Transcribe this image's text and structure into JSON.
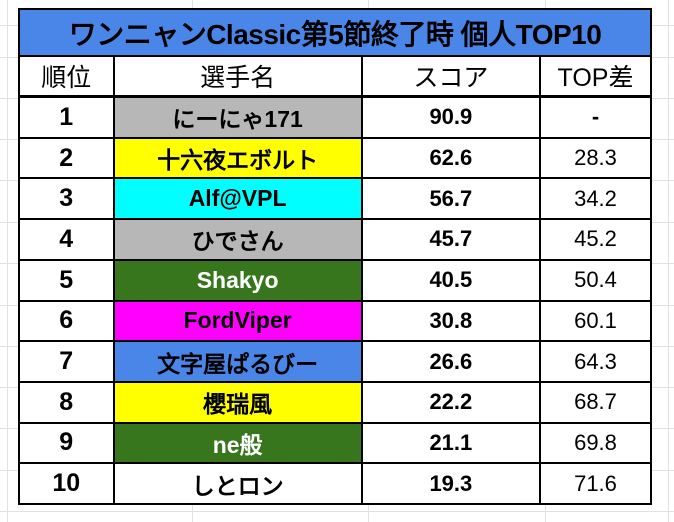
{
  "title": "ワンニャンClassic第5節終了時 個人TOP10",
  "columns": {
    "rank": "順位",
    "name": "選手名",
    "score": "スコア",
    "diff": "TOP差"
  },
  "rows": [
    {
      "rank": "1",
      "name": "にーにゃ171",
      "score": "90.9",
      "diff": "-",
      "name_bg": "#B7B7B7",
      "name_fg": "#000000"
    },
    {
      "rank": "2",
      "name": "十六夜エボルト",
      "score": "62.6",
      "diff": "28.3",
      "name_bg": "#FFFF00",
      "name_fg": "#000000"
    },
    {
      "rank": "3",
      "name": "Alf@VPL",
      "score": "56.7",
      "diff": "34.2",
      "name_bg": "#00FFFF",
      "name_fg": "#000000"
    },
    {
      "rank": "4",
      "name": "ひでさん",
      "score": "45.7",
      "diff": "45.2",
      "name_bg": "#B7B7B7",
      "name_fg": "#000000"
    },
    {
      "rank": "5",
      "name": "Shakyo",
      "score": "40.5",
      "diff": "50.4",
      "name_bg": "#38761D",
      "name_fg": "#FFFFFF"
    },
    {
      "rank": "6",
      "name": "FordViper",
      "score": "30.8",
      "diff": "60.1",
      "name_bg": "#FF00FF",
      "name_fg": "#000000"
    },
    {
      "rank": "7",
      "name": "文字屋ぱるびー",
      "score": "26.6",
      "diff": "64.3",
      "name_bg": "#4A86E8",
      "name_fg": "#000000"
    },
    {
      "rank": "8",
      "name": "櫻瑞風",
      "score": "22.2",
      "diff": "68.7",
      "name_bg": "#FFFF00",
      "name_fg": "#000000"
    },
    {
      "rank": "9",
      "name": "ne般",
      "score": "21.1",
      "diff": "69.8",
      "name_bg": "#38761D",
      "name_fg": "#FFFFFF"
    },
    {
      "rank": "10",
      "name": "しとロン",
      "score": "19.3",
      "diff": "71.6",
      "name_bg": "#FFFFFF",
      "name_fg": "#000000"
    }
  ],
  "colors": {
    "title_bg": "#4A86E8",
    "title_fg": "#000000",
    "table_border": "#000000",
    "cell_bg": "#FFFFFF",
    "gridline": "#E1E1E1"
  }
}
